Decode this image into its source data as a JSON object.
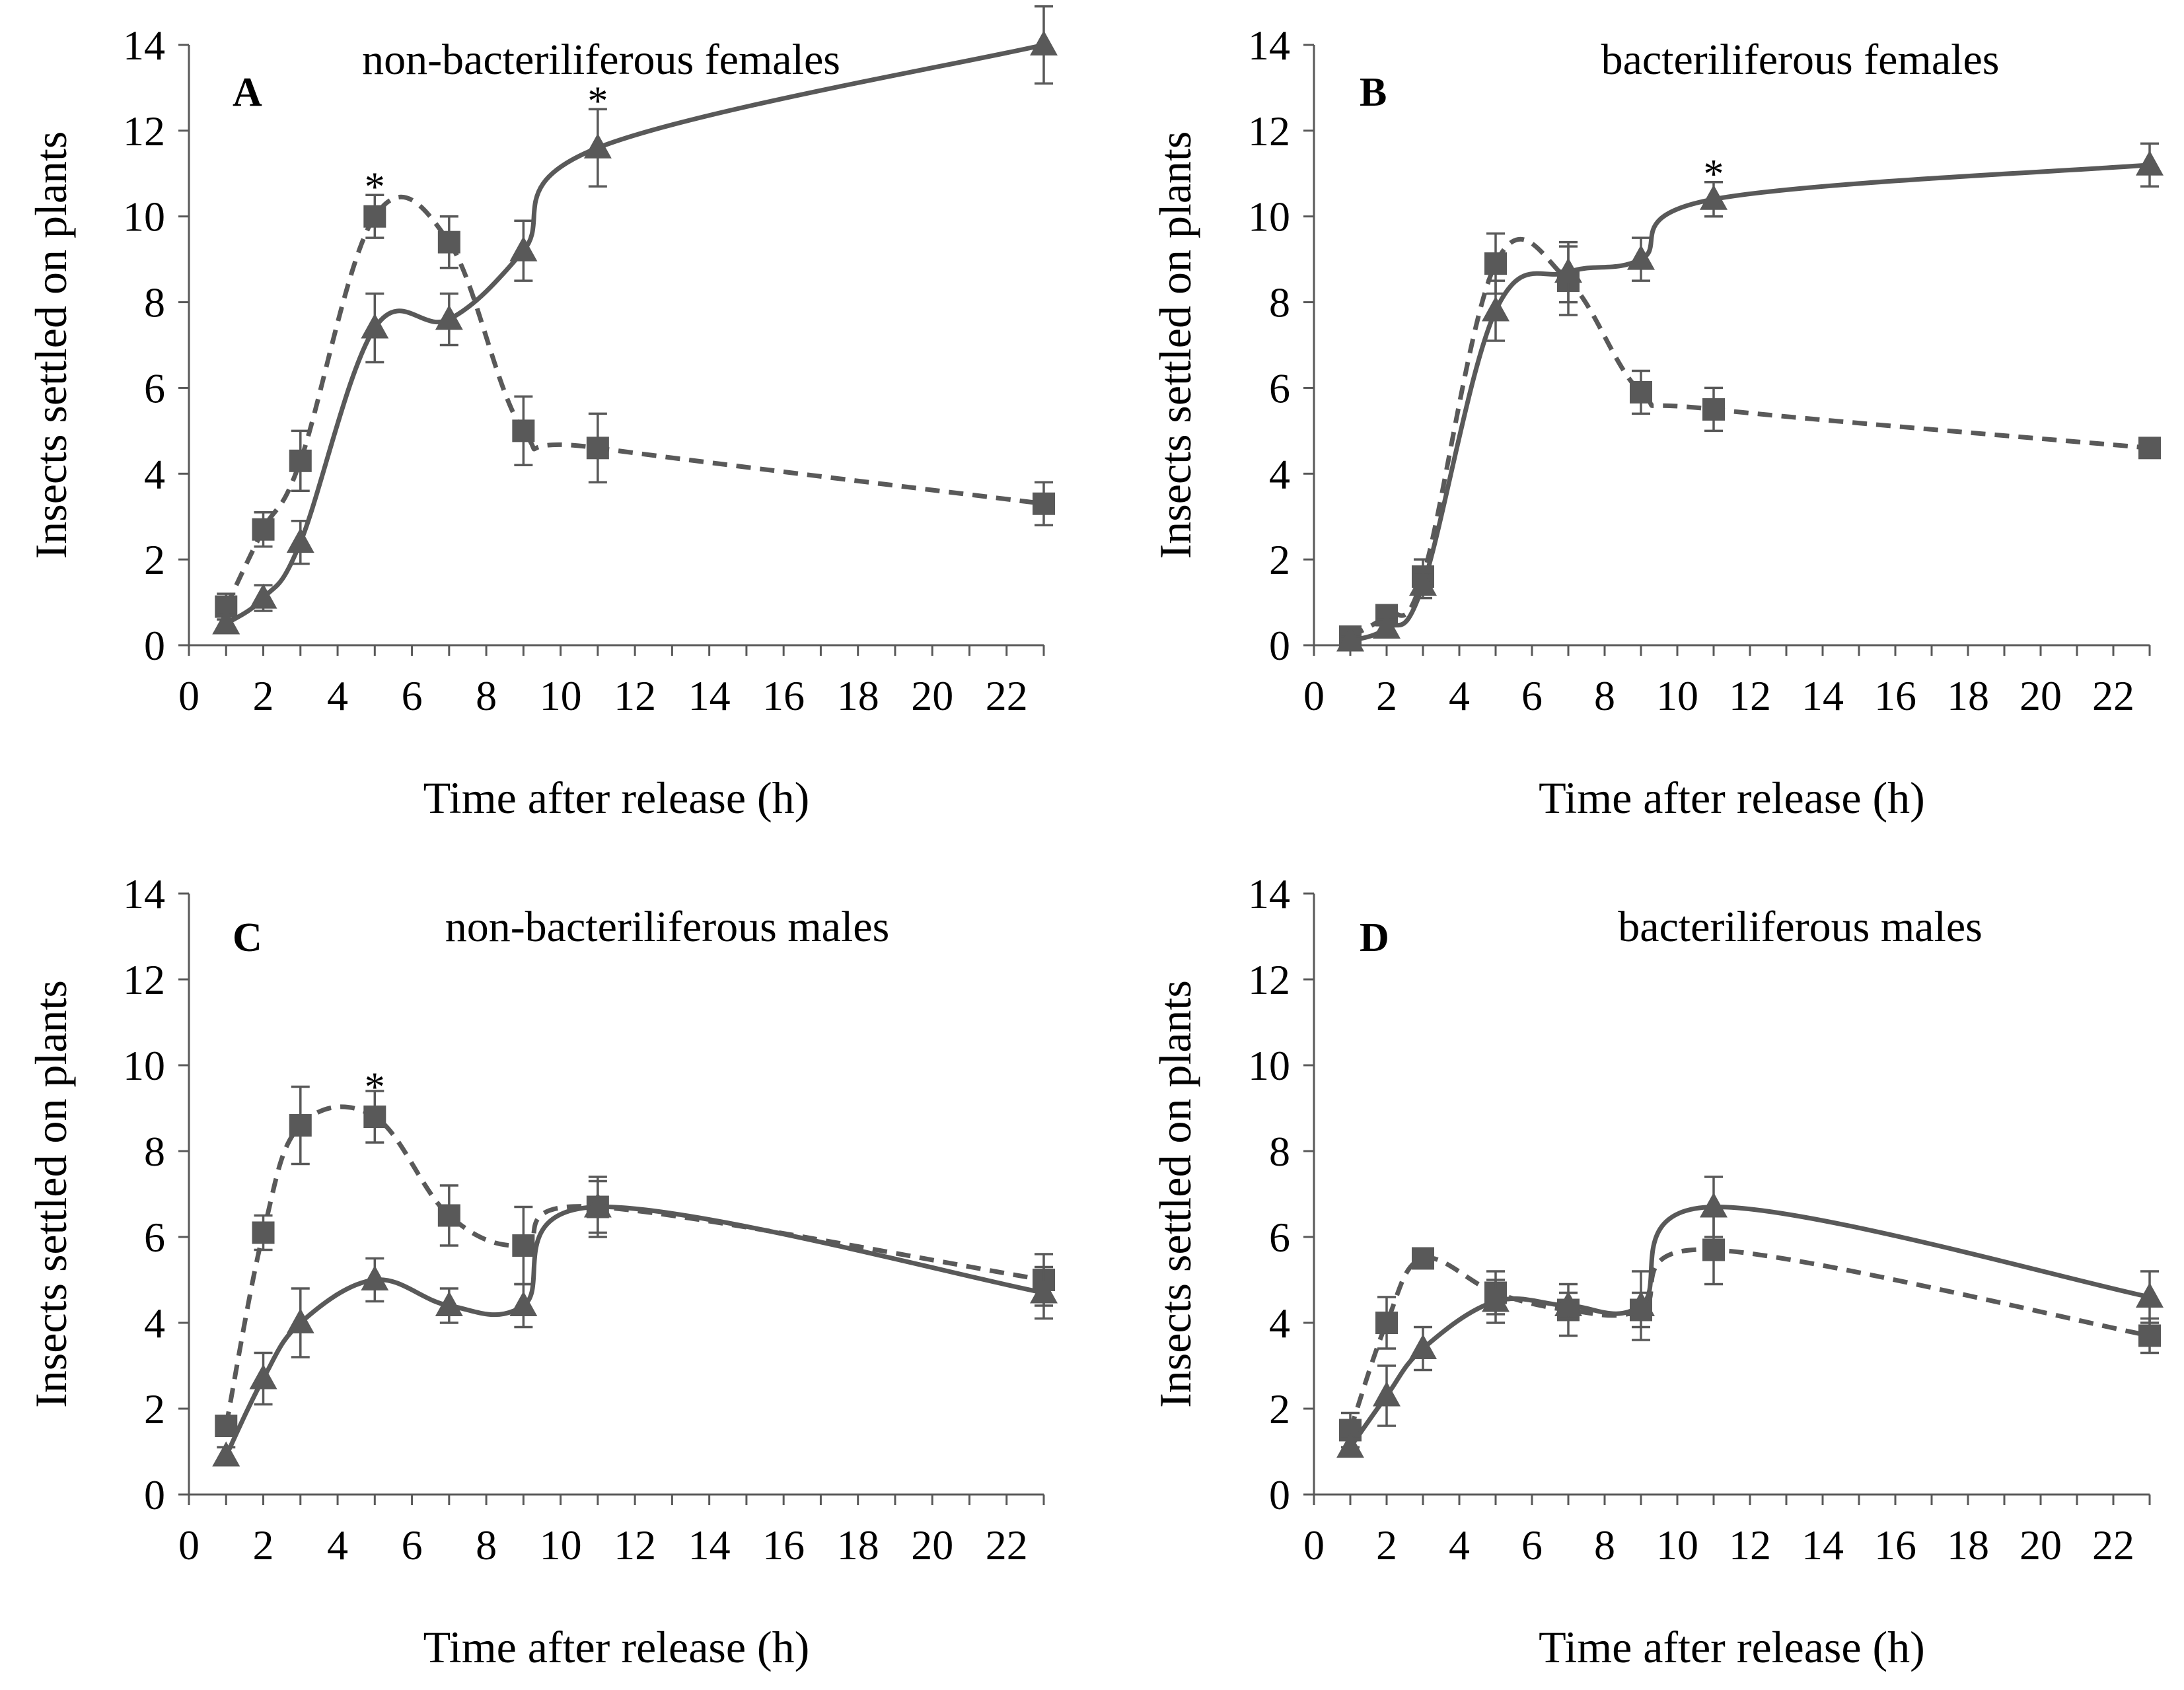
{
  "figure": {
    "colors": {
      "series": "#595959",
      "axis": "#595959",
      "text": "#000000"
    }
  },
  "chart_data": [
    {
      "panel": "A",
      "type": "line",
      "title": "non-bacteriliferous females",
      "xlabel": "Time after release (h)",
      "ylabel": "Insects settled on plants",
      "xlim": [
        0,
        23
      ],
      "ylim": [
        0,
        14
      ],
      "xticks": [
        0,
        2,
        4,
        6,
        8,
        10,
        12,
        14,
        16,
        18,
        20,
        22
      ],
      "yticks": [
        0,
        2,
        4,
        6,
        8,
        10,
        12,
        14
      ],
      "x": [
        1,
        2,
        3,
        5,
        7,
        9,
        11,
        23
      ],
      "series": [
        {
          "name": "squares (dashed)",
          "marker": "square",
          "line": "dashed",
          "values": [
            0.9,
            2.7,
            4.3,
            10.0,
            9.4,
            5.0,
            4.6,
            3.3
          ],
          "errors": [
            0.3,
            0.4,
            0.7,
            0.5,
            0.6,
            0.8,
            0.8,
            0.5
          ]
        },
        {
          "name": "triangles (solid)",
          "marker": "triangle",
          "line": "solid",
          "values": [
            0.5,
            1.1,
            2.4,
            7.4,
            7.6,
            9.2,
            11.6,
            14.0
          ],
          "errors": [
            0.2,
            0.3,
            0.5,
            0.8,
            0.6,
            0.7,
            0.9,
            0.9
          ]
        }
      ],
      "annotations": [
        {
          "text": "*",
          "x": 5,
          "y": 10.5
        },
        {
          "text": "*",
          "x": 11,
          "y": 12.5
        }
      ]
    },
    {
      "panel": "B",
      "type": "line",
      "title": "bacteriliferous females",
      "xlabel": "Time after release (h)",
      "ylabel": "Insects settled on plants",
      "xlim": [
        0,
        23
      ],
      "ylim": [
        0,
        14
      ],
      "xticks": [
        0,
        2,
        4,
        6,
        8,
        10,
        12,
        14,
        16,
        18,
        20,
        22
      ],
      "yticks": [
        0,
        2,
        4,
        6,
        8,
        10,
        12,
        14
      ],
      "x": [
        1,
        2,
        3,
        5,
        7,
        9,
        11,
        23
      ],
      "series": [
        {
          "name": "squares (dashed)",
          "marker": "square",
          "line": "dashed",
          "values": [
            0.2,
            0.7,
            1.6,
            8.9,
            8.5,
            5.9,
            5.5,
            4.6
          ],
          "errors": [
            0.1,
            0.2,
            0.4,
            0.7,
            0.8,
            0.5,
            0.5,
            0.2
          ]
        },
        {
          "name": "triangles (solid)",
          "marker": "triangle",
          "line": "solid",
          "values": [
            0.1,
            0.4,
            1.4,
            7.8,
            8.7,
            9.0,
            10.4,
            11.2
          ],
          "errors": [
            0.1,
            0.2,
            0.3,
            0.7,
            0.7,
            0.5,
            0.4,
            0.5
          ]
        }
      ],
      "annotations": [
        {
          "text": "*",
          "x": 11,
          "y": 10.8
        }
      ]
    },
    {
      "panel": "C",
      "type": "line",
      "title": "non-bacteriliferous males",
      "xlabel": "Time after release (h)",
      "ylabel": "Insects settled on plants",
      "xlim": [
        0,
        23
      ],
      "ylim": [
        0,
        14
      ],
      "xticks": [
        0,
        2,
        4,
        6,
        8,
        10,
        12,
        14,
        16,
        18,
        20,
        22
      ],
      "yticks": [
        0,
        2,
        4,
        6,
        8,
        10,
        12,
        14
      ],
      "x": [
        1,
        2,
        3,
        5,
        7,
        9,
        11,
        23
      ],
      "series": [
        {
          "name": "squares (dashed)",
          "marker": "square",
          "line": "dashed",
          "values": [
            1.6,
            6.1,
            8.6,
            8.8,
            6.5,
            5.8,
            6.7,
            5.0
          ],
          "errors": [
            0.2,
            0.4,
            0.9,
            0.6,
            0.7,
            0.9,
            0.7,
            0.6
          ]
        },
        {
          "name": "triangles (solid)",
          "marker": "triangle",
          "line": "solid",
          "values": [
            0.9,
            2.7,
            4.0,
            5.0,
            4.4,
            4.4,
            6.7,
            4.7
          ],
          "errors": [
            0.2,
            0.6,
            0.8,
            0.5,
            0.4,
            0.5,
            0.6,
            0.6
          ]
        }
      ],
      "annotations": [
        {
          "text": "*",
          "x": 5,
          "y": 9.3
        }
      ]
    },
    {
      "panel": "D",
      "type": "line",
      "title": "bacteriliferous males",
      "xlabel": "Time after release (h)",
      "ylabel": "Insects settled on plants",
      "xlim": [
        0,
        23
      ],
      "ylim": [
        0,
        14
      ],
      "xticks": [
        0,
        2,
        4,
        6,
        8,
        10,
        12,
        14,
        16,
        18,
        20,
        22
      ],
      "yticks": [
        0,
        2,
        4,
        6,
        8,
        10,
        12,
        14
      ],
      "x": [
        1,
        2,
        3,
        5,
        7,
        9,
        11,
        23
      ],
      "series": [
        {
          "name": "squares (dashed)",
          "marker": "square",
          "line": "dashed",
          "values": [
            1.5,
            4.0,
            5.5,
            4.7,
            4.3,
            4.3,
            5.7,
            3.7
          ],
          "errors": [
            0.4,
            0.6,
            0.1,
            0.5,
            0.6,
            0.4,
            0.8,
            0.4
          ]
        },
        {
          "name": "triangles (solid)",
          "marker": "triangle",
          "line": "solid",
          "values": [
            1.1,
            2.3,
            3.4,
            4.5,
            4.4,
            4.4,
            6.7,
            4.6
          ],
          "errors": [
            0.2,
            0.7,
            0.5,
            0.5,
            0.3,
            0.8,
            0.7,
            0.6
          ]
        }
      ],
      "annotations": []
    }
  ]
}
